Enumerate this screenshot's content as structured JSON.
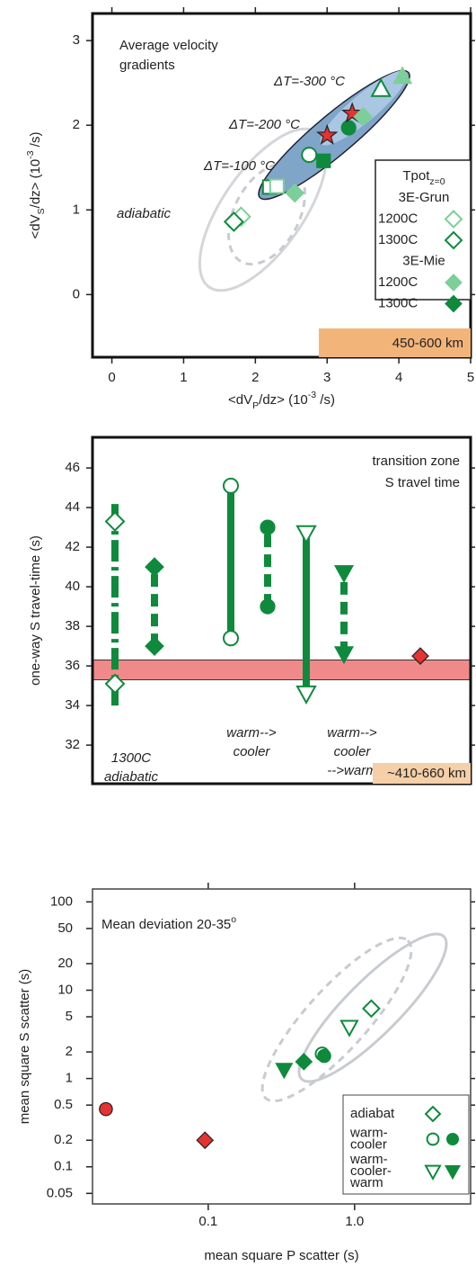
{
  "chart_data": [
    {
      "type": "scatter",
      "title": [
        "Average velocity",
        "gradients"
      ],
      "xlabel": [
        "<dV",
        "P",
        "/dz> (10",
        "-3",
        " /s)"
      ],
      "ylabel": [
        "<dV",
        "S",
        "/dz> (10",
        "-3",
        " /s)"
      ],
      "xlim": [
        -0.27,
        5
      ],
      "ylim": [
        -0.74,
        3.32
      ],
      "xticks": [
        0,
        1,
        2,
        3,
        4,
        5
      ],
      "yticks": [
        0,
        1,
        2,
        3
      ],
      "annotations": [
        "ΔT=-300 °C",
        "ΔT=-200 °C",
        "ΔT=-100 °C",
        "adiabatic"
      ],
      "depth_label": "450-600 km",
      "depth_color": "#f3b47a",
      "legend": {
        "title": [
          "Tpot",
          "z=0"
        ],
        "items": [
          {
            "label": "3E-Grun"
          },
          {
            "label": "1200C",
            "marker": "diamond-open",
            "color": "#7ccf98"
          },
          {
            "label": "1300C",
            "marker": "diamond-open",
            "color": "#0f8a3d"
          },
          {
            "label": "3E-Mie"
          },
          {
            "label": "1200C",
            "marker": "diamond",
            "color": "#7ccf98"
          },
          {
            "label": "1300C",
            "marker": "diamond",
            "color": "#0f8a3d"
          }
        ]
      },
      "points": {
        "x": [
          1.8,
          1.7,
          2.55,
          2.2,
          2.3,
          2.75,
          2.95,
          3.0,
          3.3,
          3.35,
          3.5,
          3.75,
          4.05
        ],
        "y": [
          0.92,
          0.86,
          1.2,
          1.27,
          1.28,
          1.65,
          1.58,
          1.88,
          1.97,
          2.14,
          2.1,
          2.43,
          2.58
        ],
        "markers": [
          "diamond-open",
          "diamond-open",
          "diamond",
          "square-open",
          "square-open",
          "circle-open",
          "square",
          "star",
          "circle",
          "star",
          "diamond",
          "triangle-up-open",
          "triangle-up"
        ],
        "colors": [
          "#7ccf98",
          "#0f8a3d",
          "#7ccf98",
          "#0f8a3d",
          "#7ccf98",
          "#0f8a3d",
          "#0f8a3d",
          "#e53232",
          "#0f8a3d",
          "#e53232",
          "#7ccf98",
          "#0f8a3d",
          "#7ccf98"
        ]
      }
    },
    {
      "type": "range",
      "title": [
        "transition zone",
        "S travel time"
      ],
      "ylabel": "one-way S travel-time (s)",
      "ylim": [
        30.05,
        47.55
      ],
      "yticks": [
        32,
        34,
        36,
        38,
        40,
        42,
        44,
        46
      ],
      "band": [
        35.3,
        36.3
      ],
      "band_color": "#f08a8a",
      "ranges": [
        {
          "low": 35.1,
          "high": 43.3,
          "whisker": [
            34.0,
            44.4
          ],
          "marker": "diamond-open",
          "style": "dashdot"
        },
        {
          "low": 37.0,
          "high": 41.0,
          "marker": "diamond",
          "style": "dashed"
        },
        {
          "low": 37.4,
          "high": 45.1,
          "marker": "circle-open",
          "style": "solid"
        },
        {
          "low": 39.0,
          "high": 43.0,
          "marker": "circle",
          "style": "dashed"
        },
        {
          "low": 34.6,
          "high": 42.7,
          "marker": "triangle-down-open",
          "style": "solid"
        },
        {
          "low": 36.6,
          "high": 40.7,
          "marker": "triangle-down",
          "style": "dashed"
        }
      ],
      "color": "#0f8a3d",
      "point": {
        "value": 36.5,
        "marker": "diamond",
        "color": "#e53232"
      },
      "annotations": [
        [
          "1300C",
          "adiabatic"
        ],
        [
          "warm-->",
          "cooler"
        ],
        [
          "warm-->",
          "cooler",
          "-->warm"
        ]
      ],
      "depth_label": "~410-660 km",
      "depth_color": "#f5cfa8"
    },
    {
      "type": "scatter",
      "xscale": "log",
      "yscale": "log",
      "title": [
        "Mean deviation 20-35",
        "o"
      ],
      "xlabel": [
        "mean square P scatter (s)"
      ],
      "ylabel": [
        "mean square S scatter (s)"
      ],
      "xlim": [
        0.0162,
        6.2
      ],
      "ylim": [
        0.038,
        140
      ],
      "xticks": [
        0.1,
        {
          "value": 1,
          "label": "1.0"
        }
      ],
      "yticks": [
        0.05,
        0.1,
        0.2,
        0.5,
        1,
        2,
        5,
        10,
        20,
        50,
        100
      ],
      "legend": {
        "items": [
          {
            "label": [
              "adiabat"
            ],
            "markers": [
              "diamond-open"
            ]
          },
          {
            "label": [
              "warm-",
              "cooler"
            ],
            "markers": [
              "circle-open",
              "circle"
            ]
          },
          {
            "label": [
              "warm-",
              "cooler-",
              "warm"
            ],
            "markers": [
              "triangle-down-open",
              "triangle-down"
            ]
          }
        ],
        "color": "#0f8a3d"
      },
      "points": {
        "x": [
          1.3,
          0.92,
          0.6,
          0.62,
          0.45,
          0.33,
          0.02,
          0.095
        ],
        "y": [
          6.2,
          3.8,
          1.9,
          1.8,
          1.55,
          1.25,
          0.45,
          0.2
        ],
        "markers": [
          "diamond-open",
          "triangle-down-open",
          "circle-open",
          "circle",
          "diamond",
          "triangle-down",
          "circle",
          "diamond"
        ],
        "colors": [
          "#0f8a3d",
          "#0f8a3d",
          "#0f8a3d",
          "#0f8a3d",
          "#0f8a3d",
          "#0f8a3d",
          "#e53232",
          "#e53232"
        ]
      }
    }
  ]
}
